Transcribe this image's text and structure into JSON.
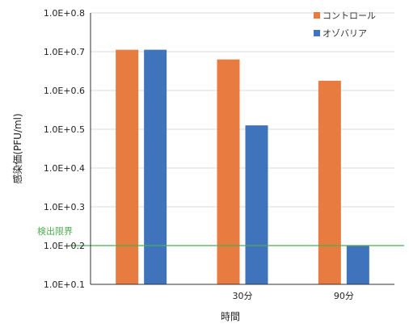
{
  "chart_data": {
    "type": "bar",
    "categories": [
      "",
      "30分",
      "90分"
    ],
    "series": [
      {
        "name": "コントロール",
        "color": "#E87B40",
        "values": [
          7.05,
          6.8,
          6.25
        ]
      },
      {
        "name": "オゾバリア",
        "color": "#3F73BC",
        "values": [
          7.05,
          5.1,
          2.0
        ]
      }
    ],
    "yscale": "log10",
    "ylim": [
      1,
      8
    ],
    "yticks": [
      {
        "value": 8,
        "label": "1.0E+0.8"
      },
      {
        "value": 7,
        "label": "1.0E+0.7"
      },
      {
        "value": 6,
        "label": "1.0E+0.6"
      },
      {
        "value": 5,
        "label": "1.0E+0.5"
      },
      {
        "value": 4,
        "label": "1.0E+0.4"
      },
      {
        "value": 3,
        "label": "1.0E+0.3"
      },
      {
        "value": 2,
        "label": "1.0E+0.2"
      },
      {
        "value": 1,
        "label": "1.0E+0.1"
      }
    ],
    "xlabel": "時間",
    "ylabel": "感染価(PFU/ml)",
    "grid": true,
    "legend_position": "top-right",
    "reference_line": {
      "value": 2,
      "label": "検出限界",
      "color": "#4CAF50"
    }
  }
}
